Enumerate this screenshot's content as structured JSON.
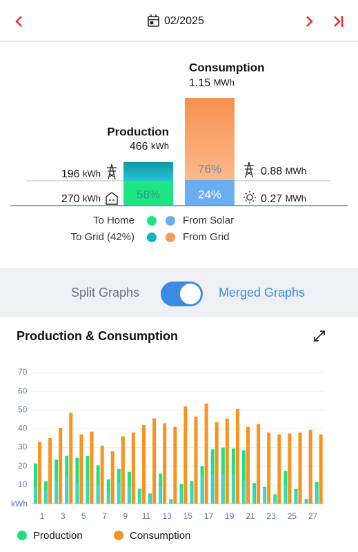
{
  "header": {
    "date": "02/2025"
  },
  "summary": {
    "production": {
      "title": "Production",
      "value": "466",
      "unit": "kWh",
      "to_grid": {
        "value": "196",
        "unit": "kWh"
      },
      "to_home": {
        "value": "270",
        "unit": "kWh",
        "share": "58%"
      }
    },
    "consumption": {
      "title": "Consumption",
      "value": "1.15",
      "unit": "MWh",
      "from_grid": {
        "value": "0.88",
        "unit": "MWh",
        "share": "76%"
      },
      "from_solar": {
        "value": "0.27",
        "unit": "MWh",
        "share": "24%"
      }
    }
  },
  "legend": {
    "to_home": "To Home",
    "to_grid": "To Grid (42%)",
    "from_solar": "From Solar",
    "from_grid": "From Grid"
  },
  "toggle": {
    "off": "Split Graphs",
    "on": "Merged Graphs"
  },
  "chart_data": {
    "type": "bar",
    "title": "Production & Consumption",
    "y_unit": "kWh",
    "categories": [
      "1",
      null,
      "3",
      null,
      "5",
      null,
      "7",
      null,
      "9",
      null,
      "11",
      null,
      "13",
      null,
      "15",
      null,
      "17",
      null,
      "19",
      null,
      "21",
      null,
      "23",
      null,
      "25",
      null,
      "27",
      null
    ],
    "series": [
      {
        "name": "Production",
        "color": "#22e07f",
        "values": [
          21.5,
          12,
          23.5,
          25.5,
          24.5,
          25.5,
          20.5,
          13,
          18.5,
          17,
          8,
          5.5,
          16,
          2.5,
          10.5,
          12,
          20,
          29,
          30,
          29.5,
          28.5,
          11,
          9,
          5,
          17.5,
          8,
          2.5,
          11.5
        ]
      },
      {
        "name": "Consumption",
        "color": "#f7931e",
        "values": [
          33,
          35,
          40.5,
          48.5,
          37,
          38.5,
          31,
          28,
          36,
          38,
          42,
          45.5,
          43,
          41,
          52,
          46.5,
          53.5,
          43.5,
          45.5,
          50.5,
          41,
          42.5,
          38,
          37,
          37.5,
          38,
          39.5,
          37
        ]
      }
    ],
    "overlay": {
      "color": "#3fd3dc",
      "values": [
        9,
        7,
        12,
        14.5,
        11,
        13,
        10,
        6.5,
        11,
        9,
        6.5,
        5,
        9,
        2,
        8,
        9.5,
        14.5,
        16,
        16,
        16,
        12.5,
        8.5,
        8,
        4.5,
        10.5,
        6.5,
        2,
        8.5
      ]
    },
    "ylim": [
      0,
      70
    ],
    "yticks": [
      10,
      20,
      30,
      40,
      50,
      60,
      70
    ],
    "grid": true
  }
}
